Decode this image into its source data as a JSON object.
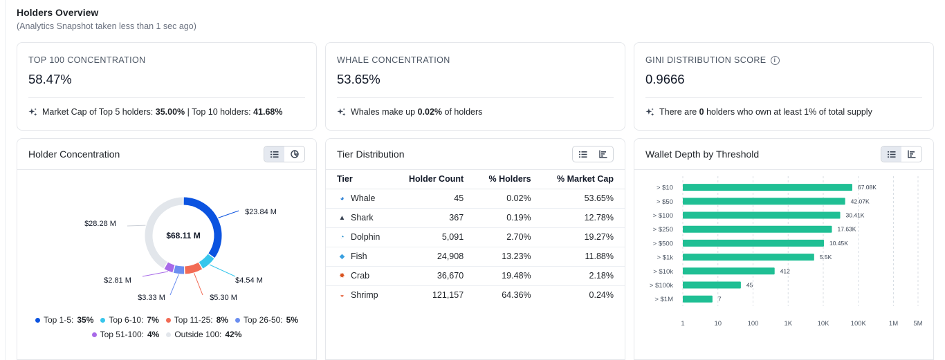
{
  "header": {
    "title": "Holders Overview",
    "subtitle": "(Analytics Snapshot taken less than 1 sec ago)"
  },
  "stats": [
    {
      "label": "TOP 100 CONCENTRATION",
      "value": "58.47%",
      "note": {
        "t1": "Market Cap of Top 5 holders: ",
        "b1": "35.00%",
        "t2": " | Top 10 holders: ",
        "b2": "41.68%",
        "t3": ""
      }
    },
    {
      "label": "WHALE CONCENTRATION",
      "value": "53.65%",
      "note": {
        "t1": "Whales make up ",
        "b1": "0.02%",
        "t2": " of holders",
        "b2": "",
        "t3": ""
      }
    },
    {
      "label": "GINI DISTRIBUTION SCORE",
      "value": "0.9666",
      "note": {
        "t1": "There are ",
        "b1": "0",
        "t2": " holders who own at least 1% of total supply",
        "b2": "",
        "t3": ""
      }
    }
  ],
  "concentration": {
    "title": "Holder Concentration",
    "center_label": "$68.11 M",
    "segments": [
      {
        "name": "Top 1-5",
        "pct": "35%",
        "share": 0.35,
        "amount": "$23.84 M",
        "color": "#0b53e0"
      },
      {
        "name": "Top 6-10",
        "pct": "7%",
        "share": 0.0667,
        "amount": "$4.54 M",
        "color": "#38c6ec"
      },
      {
        "name": "Top 11-25",
        "pct": "8%",
        "share": 0.0778,
        "amount": "$5.30 M",
        "color": "#f26b55"
      },
      {
        "name": "Top 26-50",
        "pct": "5%",
        "share": 0.0489,
        "amount": "$3.33 M",
        "color": "#6b8ef0"
      },
      {
        "name": "Top 51-100",
        "pct": "4%",
        "share": 0.0413,
        "amount": "$2.81 M",
        "color": "#a86ae8"
      },
      {
        "name": "Outside 100",
        "pct": "42%",
        "share": 0.4153,
        "amount": "$28.28 M",
        "color": "#e2e6eb"
      }
    ]
  },
  "tiers": {
    "title": "Tier Distribution",
    "headers": [
      "Tier",
      "Holder Count",
      "% Holders",
      "% Market Cap"
    ],
    "rows": [
      {
        "tier": "Whale",
        "icon": "whale-icon",
        "count": "45",
        "holders": "0.02%",
        "mcap": "53.65%",
        "color": "#2a7fd4"
      },
      {
        "tier": "Shark",
        "icon": "shark-icon",
        "count": "367",
        "holders": "0.19%",
        "mcap": "12.78%",
        "color": "#374151"
      },
      {
        "tier": "Dolphin",
        "icon": "dolphin-icon",
        "count": "5,091",
        "holders": "2.70%",
        "mcap": "19.27%",
        "color": "#1e88c8"
      },
      {
        "tier": "Fish",
        "icon": "fish-icon",
        "count": "24,908",
        "holders": "13.23%",
        "mcap": "11.88%",
        "color": "#3aa0e0"
      },
      {
        "tier": "Crab",
        "icon": "crab-icon",
        "count": "36,670",
        "holders": "19.48%",
        "mcap": "2.18%",
        "color": "#d9531e"
      },
      {
        "tier": "Shrimp",
        "icon": "shrimp-icon",
        "count": "121,157",
        "holders": "64.36%",
        "mcap": "0.24%",
        "color": "#e4572e"
      }
    ]
  },
  "depth": {
    "title": "Wallet Depth by Threshold"
  },
  "chart_data": {
    "type": "bar",
    "orientation": "horizontal",
    "title": "Wallet Depth by Threshold",
    "x_scale": "log",
    "categories": [
      "> $10",
      "> $50",
      "> $100",
      "> $250",
      "> $500",
      "> $1k",
      "> $10k",
      "> $100k",
      "> $1M"
    ],
    "values": [
      67080,
      42070,
      30410,
      17630,
      10450,
      5500,
      412,
      45,
      7
    ],
    "value_labels": [
      "67.08K",
      "42.07K",
      "30.41K",
      "17.63K",
      "10.45K",
      "5.5K",
      "412",
      "45",
      "7"
    ],
    "x_ticks": [
      {
        "label": "1",
        "value": 1
      },
      {
        "label": "10",
        "value": 10
      },
      {
        "label": "100",
        "value": 100
      },
      {
        "label": "1K",
        "value": 1000
      },
      {
        "label": "10K",
        "value": 10000
      },
      {
        "label": "100K",
        "value": 100000
      },
      {
        "label": "1M",
        "value": 1000000
      },
      {
        "label": "5M",
        "value": 5000000
      }
    ],
    "xlim": [
      1,
      5000000
    ],
    "bar_color": "#1fbf94",
    "grid": true
  },
  "icons": {
    "list": "list-icon",
    "pie": "pie-chart-icon",
    "bars": "bar-chart-icon",
    "sparkle": "sparkle-icon",
    "info": "info-icon"
  }
}
